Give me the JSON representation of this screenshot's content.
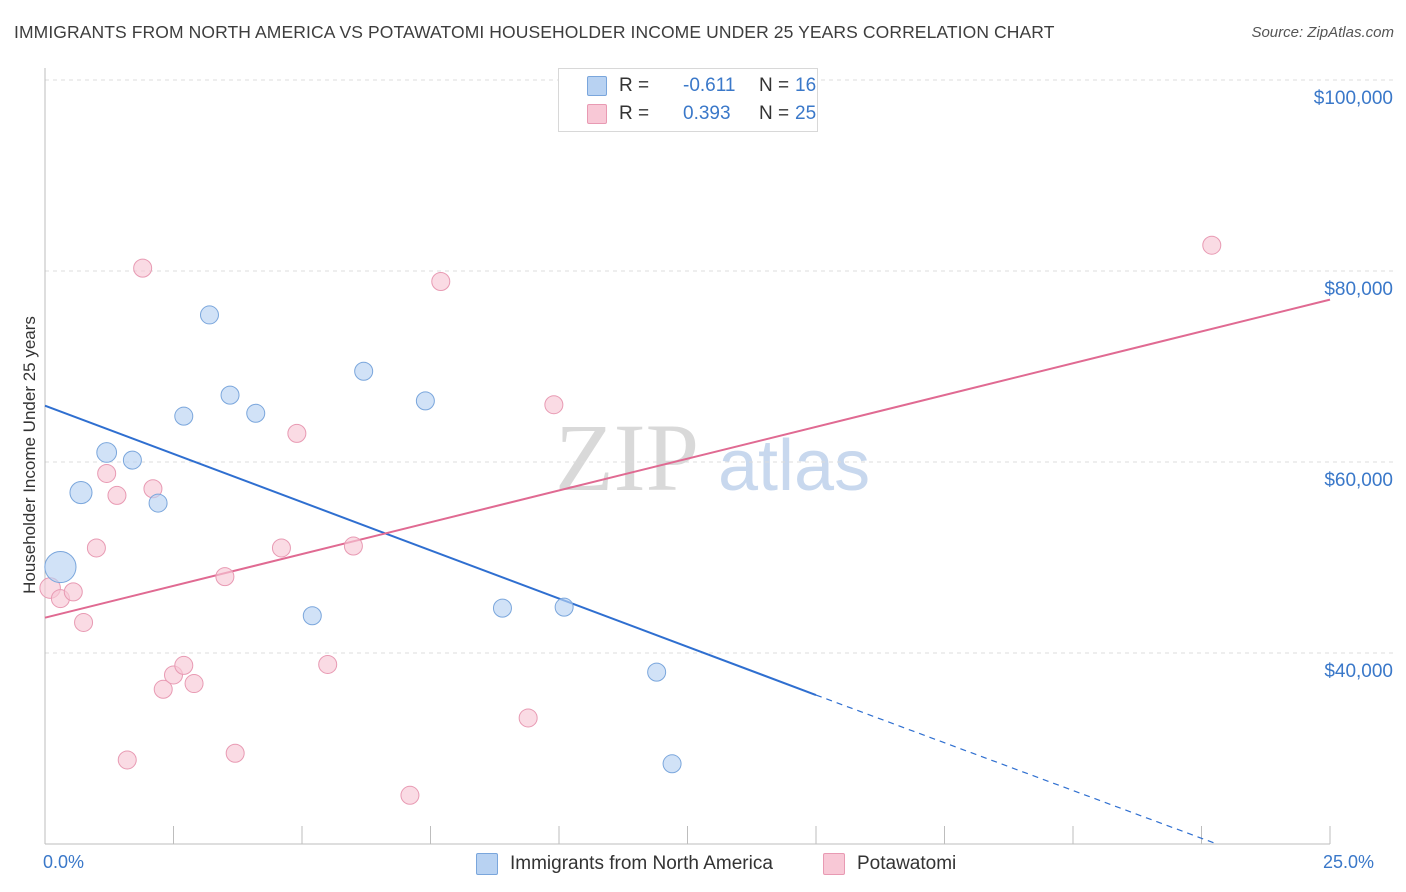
{
  "header": {
    "title": "IMMIGRANTS FROM NORTH AMERICA VS POTAWATOMI HOUSEHOLDER INCOME UNDER 25 YEARS CORRELATION CHART",
    "source": "Source: ZipAtlas.com"
  },
  "legend": {
    "rows": [
      {
        "r_label": "R =",
        "r_value": "-0.611",
        "n_label": "N =",
        "n_value": "16"
      },
      {
        "r_label": "R =",
        "r_value": "0.393",
        "n_label": "N =",
        "n_value": "25"
      }
    ],
    "series_names": [
      "Immigrants from North America",
      "Potawatomi"
    ]
  },
  "axis": {
    "x_min_label": "0.0%",
    "x_max_label": "25.0%",
    "y_label": "Householder Income Under 25 years",
    "y_ticks": [
      "$100,000",
      "$80,000",
      "$60,000",
      "$40,000"
    ]
  },
  "watermark": {
    "zip": "ZIP",
    "atlas": "atlas"
  },
  "colors": {
    "blue_fill": "#b8d2f2",
    "blue_stroke": "#7aa6dc",
    "blue_line": "#2f6fd0",
    "pink_fill": "#f8c8d6",
    "pink_stroke": "#e89ab3",
    "pink_line": "#e06a92",
    "accent_text": "#3a78c9"
  },
  "chart_data": {
    "type": "scatter",
    "title": "IMMIGRANTS FROM NORTH AMERICA VS POTAWATOMI HOUSEHOLDER INCOME UNDER 25 YEARS CORRELATION CHART",
    "xlabel": "",
    "ylabel": "Householder Income Under 25 years",
    "xlim": [
      0,
      25
    ],
    "ylim": [
      20000,
      102000
    ],
    "y_ticks": [
      40000,
      60000,
      80000,
      100000
    ],
    "series": [
      {
        "name": "Immigrants from North America",
        "r": -0.611,
        "n": 16,
        "points": [
          {
            "x": 0.3,
            "y": 49000,
            "size": 3
          },
          {
            "x": 0.7,
            "y": 56800,
            "size": 1.5
          },
          {
            "x": 1.2,
            "y": 61000,
            "size": 1.2
          },
          {
            "x": 1.7,
            "y": 60200,
            "size": 1
          },
          {
            "x": 2.2,
            "y": 55700,
            "size": 1
          },
          {
            "x": 2.7,
            "y": 64800,
            "size": 1
          },
          {
            "x": 3.2,
            "y": 75400,
            "size": 1
          },
          {
            "x": 3.6,
            "y": 67000,
            "size": 1
          },
          {
            "x": 4.1,
            "y": 65100,
            "size": 1
          },
          {
            "x": 5.2,
            "y": 43900,
            "size": 1
          },
          {
            "x": 6.2,
            "y": 69500,
            "size": 1
          },
          {
            "x": 7.4,
            "y": 66400,
            "size": 1
          },
          {
            "x": 8.9,
            "y": 44700,
            "size": 1
          },
          {
            "x": 10.1,
            "y": 44800,
            "size": 1
          },
          {
            "x": 11.9,
            "y": 38000,
            "size": 1
          },
          {
            "x": 12.2,
            "y": 28400,
            "size": 1
          }
        ],
        "trend": {
          "x0": 0,
          "y0": 65900,
          "x1": 15,
          "y1": 35600,
          "dashed_to_x": 22.8,
          "dashed_to_y": 20000
        }
      },
      {
        "name": "Potawatomi",
        "r": 0.393,
        "n": 25,
        "points": [
          {
            "x": 0.1,
            "y": 46800,
            "size": 1.3
          },
          {
            "x": 0.3,
            "y": 45700,
            "size": 1
          },
          {
            "x": 0.55,
            "y": 46400,
            "size": 1
          },
          {
            "x": 0.75,
            "y": 43200,
            "size": 1
          },
          {
            "x": 1.0,
            "y": 51000,
            "size": 1
          },
          {
            "x": 1.2,
            "y": 58800,
            "size": 1
          },
          {
            "x": 1.4,
            "y": 56500,
            "size": 1
          },
          {
            "x": 1.6,
            "y": 28800,
            "size": 1
          },
          {
            "x": 1.9,
            "y": 80300,
            "size": 1
          },
          {
            "x": 2.1,
            "y": 57200,
            "size": 1
          },
          {
            "x": 2.3,
            "y": 36200,
            "size": 1
          },
          {
            "x": 2.5,
            "y": 37700,
            "size": 1
          },
          {
            "x": 2.7,
            "y": 38700,
            "size": 1
          },
          {
            "x": 2.9,
            "y": 36800,
            "size": 1
          },
          {
            "x": 3.5,
            "y": 48000,
            "size": 1
          },
          {
            "x": 3.7,
            "y": 29500,
            "size": 1
          },
          {
            "x": 4.6,
            "y": 51000,
            "size": 1
          },
          {
            "x": 4.9,
            "y": 63000,
            "size": 1
          },
          {
            "x": 5.5,
            "y": 38800,
            "size": 1
          },
          {
            "x": 6.0,
            "y": 51200,
            "size": 1
          },
          {
            "x": 7.1,
            "y": 25100,
            "size": 1
          },
          {
            "x": 7.7,
            "y": 78900,
            "size": 1
          },
          {
            "x": 9.4,
            "y": 33200,
            "size": 1
          },
          {
            "x": 9.9,
            "y": 66000,
            "size": 1
          },
          {
            "x": 22.7,
            "y": 82700,
            "size": 1
          }
        ],
        "trend": {
          "x0": 0,
          "y0": 43700,
          "x1": 25,
          "y1": 77000
        }
      }
    ]
  }
}
